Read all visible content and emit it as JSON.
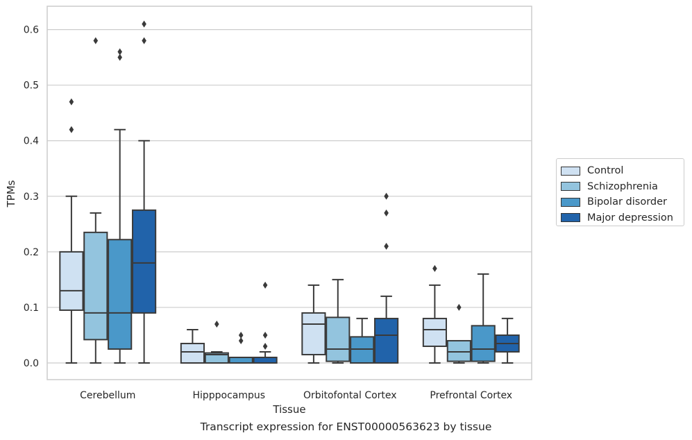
{
  "chart_data": {
    "type": "box",
    "xlabel": "Tissue",
    "ylabel": "TPMs",
    "ylim": [
      -0.03,
      0.642
    ],
    "yticks": [
      0.0,
      0.1,
      0.2,
      0.3,
      0.4,
      0.5,
      0.6
    ],
    "ytick_labels": [
      "0.0",
      "0.1",
      "0.2",
      "0.3",
      "0.4",
      "0.5",
      "0.6"
    ],
    "grid": "horizontal",
    "legend_position": "right",
    "categories": [
      "Cerebellum",
      "Hipppocampus",
      "Orbitofontal Cortex",
      "Prefrontal Cortex"
    ],
    "series": [
      {
        "name": "Control",
        "color": "#cfe1f2",
        "boxes": [
          {
            "whislo": 0.0,
            "q1": 0.095,
            "med": 0.13,
            "q3": 0.2,
            "whishi": 0.3,
            "fliers": [
              0.42,
              0.47
            ]
          },
          {
            "whislo": 0.0,
            "q1": 0.0,
            "med": 0.02,
            "q3": 0.035,
            "whishi": 0.06,
            "fliers": []
          },
          {
            "whislo": 0.0,
            "q1": 0.015,
            "med": 0.07,
            "q3": 0.09,
            "whishi": 0.14,
            "fliers": []
          },
          {
            "whislo": 0.0,
            "q1": 0.03,
            "med": 0.06,
            "q3": 0.08,
            "whishi": 0.14,
            "fliers": [
              0.17
            ]
          }
        ]
      },
      {
        "name": "Schizophrenia",
        "color": "#93c4de",
        "boxes": [
          {
            "whislo": 0.0,
            "q1": 0.042,
            "med": 0.09,
            "q3": 0.235,
            "whishi": 0.27,
            "fliers": [
              0.58
            ]
          },
          {
            "whislo": 0.0,
            "q1": 0.0,
            "med": 0.015,
            "q3": 0.018,
            "whishi": 0.02,
            "fliers": [
              0.07
            ]
          },
          {
            "whislo": 0.0,
            "q1": 0.003,
            "med": 0.025,
            "q3": 0.082,
            "whishi": 0.15,
            "fliers": []
          },
          {
            "whislo": 0.0,
            "q1": 0.003,
            "med": 0.02,
            "q3": 0.04,
            "whishi": 0.04,
            "fliers": [
              0.1
            ]
          }
        ]
      },
      {
        "name": "Bipolar disorder",
        "color": "#4a98c9",
        "boxes": [
          {
            "whislo": 0.0,
            "q1": 0.025,
            "med": 0.09,
            "q3": 0.222,
            "whishi": 0.42,
            "fliers": [
              0.55,
              0.56
            ]
          },
          {
            "whislo": 0.0,
            "q1": 0.0,
            "med": 0.01,
            "q3": 0.01,
            "whishi": 0.01,
            "fliers": [
              0.04,
              0.05
            ]
          },
          {
            "whislo": 0.0,
            "q1": 0.0,
            "med": 0.025,
            "q3": 0.047,
            "whishi": 0.08,
            "fliers": []
          },
          {
            "whislo": 0.0,
            "q1": 0.003,
            "med": 0.025,
            "q3": 0.067,
            "whishi": 0.16,
            "fliers": []
          }
        ]
      },
      {
        "name": "Major depression",
        "color": "#2163aa",
        "boxes": [
          {
            "whislo": 0.0,
            "q1": 0.09,
            "med": 0.18,
            "q3": 0.275,
            "whishi": 0.4,
            "fliers": [
              0.58,
              0.61
            ]
          },
          {
            "whislo": 0.0,
            "q1": 0.0,
            "med": 0.01,
            "q3": 0.01,
            "whishi": 0.02,
            "fliers": [
              0.03,
              0.05,
              0.14
            ]
          },
          {
            "whislo": 0.0,
            "q1": 0.0,
            "med": 0.05,
            "q3": 0.08,
            "whishi": 0.12,
            "fliers": [
              0.21,
              0.27,
              0.3
            ]
          },
          {
            "whislo": 0.0,
            "q1": 0.02,
            "med": 0.035,
            "q3": 0.05,
            "whishi": 0.08,
            "fliers": []
          }
        ]
      }
    ],
    "caption": "Transcript expression for ENST00000563623 by tissue"
  }
}
